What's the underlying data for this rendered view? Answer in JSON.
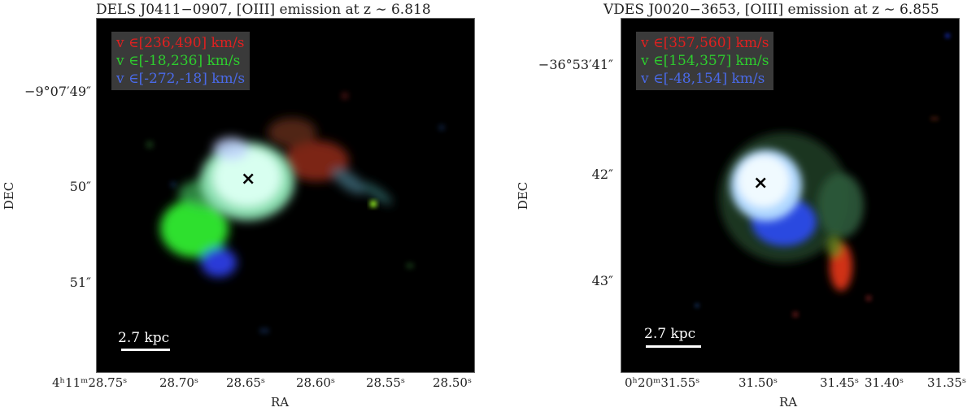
{
  "panels": [
    {
      "title": "DELS J0411−0907, [OIII] emission at z ∼ 6.818",
      "legend": [
        {
          "text": "v ∈[236,490] km/s",
          "color": "#e02020"
        },
        {
          "text": "v ∈[-18,236] km/s",
          "color": "#2ecc2e"
        },
        {
          "text": "v ∈[-272,-18] km/s",
          "color": "#3b5bdb"
        }
      ],
      "y_ticks": [
        "−9°07′49″",
        "50″",
        "51″"
      ],
      "x_ticks": [
        "4ʰ11ᵐ28.75ˢ",
        "28.70ˢ",
        "28.65ˢ",
        "28.60ˢ",
        "28.55ˢ",
        "28.50ˢ"
      ],
      "ylabel": "DEC",
      "xlabel": "RA",
      "scale_label": "2.7 kpc",
      "marker": "×"
    },
    {
      "title": "VDES J0020−3653, [OIII] emission at z ∼ 6.855",
      "legend": [
        {
          "text": "v ∈[357,560] km/s",
          "color": "#e02020"
        },
        {
          "text": "v ∈[154,357] km/s",
          "color": "#2ecc2e"
        },
        {
          "text": "v ∈[-48,154] km/s",
          "color": "#3b5bdb"
        }
      ],
      "y_ticks": [
        "−36°53′41″",
        "42″",
        "43″"
      ],
      "x_ticks": [
        "0ʰ20ᵐ31.55ˢ",
        "31.50ˢ",
        "31.45ˢ",
        "31.40ˢ",
        "31.35ˢ"
      ],
      "ylabel": "DEC",
      "xlabel": "RA",
      "scale_label": "2.7 kpc",
      "marker": "×"
    }
  ]
}
